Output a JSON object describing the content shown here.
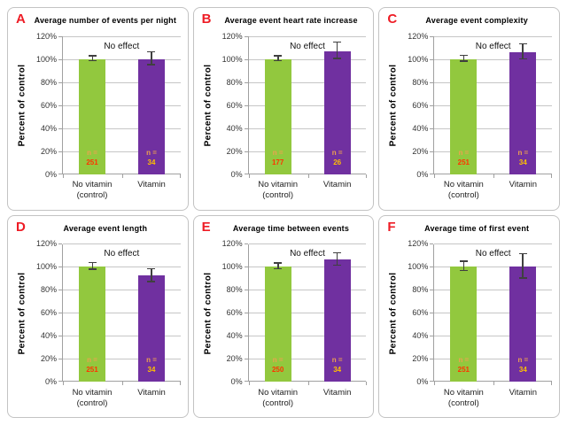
{
  "labels": {
    "n_prefix": "n ="
  },
  "colors": {
    "control_bar": "#92C83E",
    "vitamin_bar": "#7030A0",
    "panel_letter": "#EE1C25",
    "gridline": "#C6C6C6",
    "axis": "#A0A0A0",
    "error_bar": "#404040",
    "n_prefix_text": "#EDA14F",
    "n_value_on_control": "#FF3300",
    "n_value_on_vitamin": "#FFC000",
    "panel_border": "#C3C3C3"
  },
  "axis": {
    "ylabel": "Percent of control",
    "ticks": [
      "0%",
      "20%",
      "40%",
      "60%",
      "80%",
      "100%",
      "120%"
    ],
    "ymax": 120,
    "ystep": 20,
    "grid": "on"
  },
  "categories_display": [
    [
      "No vitamin",
      "(control)"
    ],
    [
      "Vitamin"
    ]
  ],
  "chart_data": [
    {
      "type": "bar",
      "panel": "A",
      "title": "Average number of events per night",
      "categories": [
        "No vitamin (control)",
        "Vitamin"
      ],
      "values": [
        100,
        100
      ],
      "errors": [
        2,
        5.5
      ],
      "n": [
        251,
        34
      ],
      "annotation": "No effect",
      "ylabel": "Percent of control",
      "ylim": [
        0,
        120
      ]
    },
    {
      "type": "bar",
      "panel": "B",
      "title": "Average event heart rate increase",
      "categories": [
        "No vitamin (control)",
        "Vitamin"
      ],
      "values": [
        100,
        107
      ],
      "errors": [
        2,
        7
      ],
      "n": [
        177,
        26
      ],
      "annotation": "No effect",
      "ylabel": "Percent of control",
      "ylim": [
        0,
        120
      ]
    },
    {
      "type": "bar",
      "panel": "C",
      "title": "Average event complexity",
      "categories": [
        "No vitamin (control)",
        "Vitamin"
      ],
      "values": [
        100,
        106
      ],
      "errors": [
        2.5,
        6.5
      ],
      "n": [
        251,
        34
      ],
      "annotation": "No effect",
      "ylabel": "Percent of control",
      "ylim": [
        0,
        120
      ]
    },
    {
      "type": "bar",
      "panel": "D",
      "title": "Average event length",
      "categories": [
        "No vitamin (control)",
        "Vitamin"
      ],
      "values": [
        100,
        92
      ],
      "errors": [
        3,
        5.5
      ],
      "n": [
        251,
        34
      ],
      "annotation": "No effect",
      "ylabel": "Percent of control",
      "ylim": [
        0,
        120
      ]
    },
    {
      "type": "bar",
      "panel": "E",
      "title": "Average time between events",
      "categories": [
        "No vitamin (control)",
        "Vitamin"
      ],
      "values": [
        100,
        106
      ],
      "errors": [
        2.5,
        5.5
      ],
      "n": [
        250,
        34
      ],
      "annotation": "No effect",
      "ylabel": "Percent of control",
      "ylim": [
        0,
        120
      ]
    },
    {
      "type": "bar",
      "panel": "F",
      "title": "Average time of first event",
      "categories": [
        "No vitamin (control)",
        "Vitamin"
      ],
      "values": [
        100,
        100
      ],
      "errors": [
        4,
        10.5
      ],
      "n": [
        251,
        34
      ],
      "annotation": "No effect",
      "ylabel": "Percent of control",
      "ylim": [
        0,
        120
      ]
    }
  ]
}
